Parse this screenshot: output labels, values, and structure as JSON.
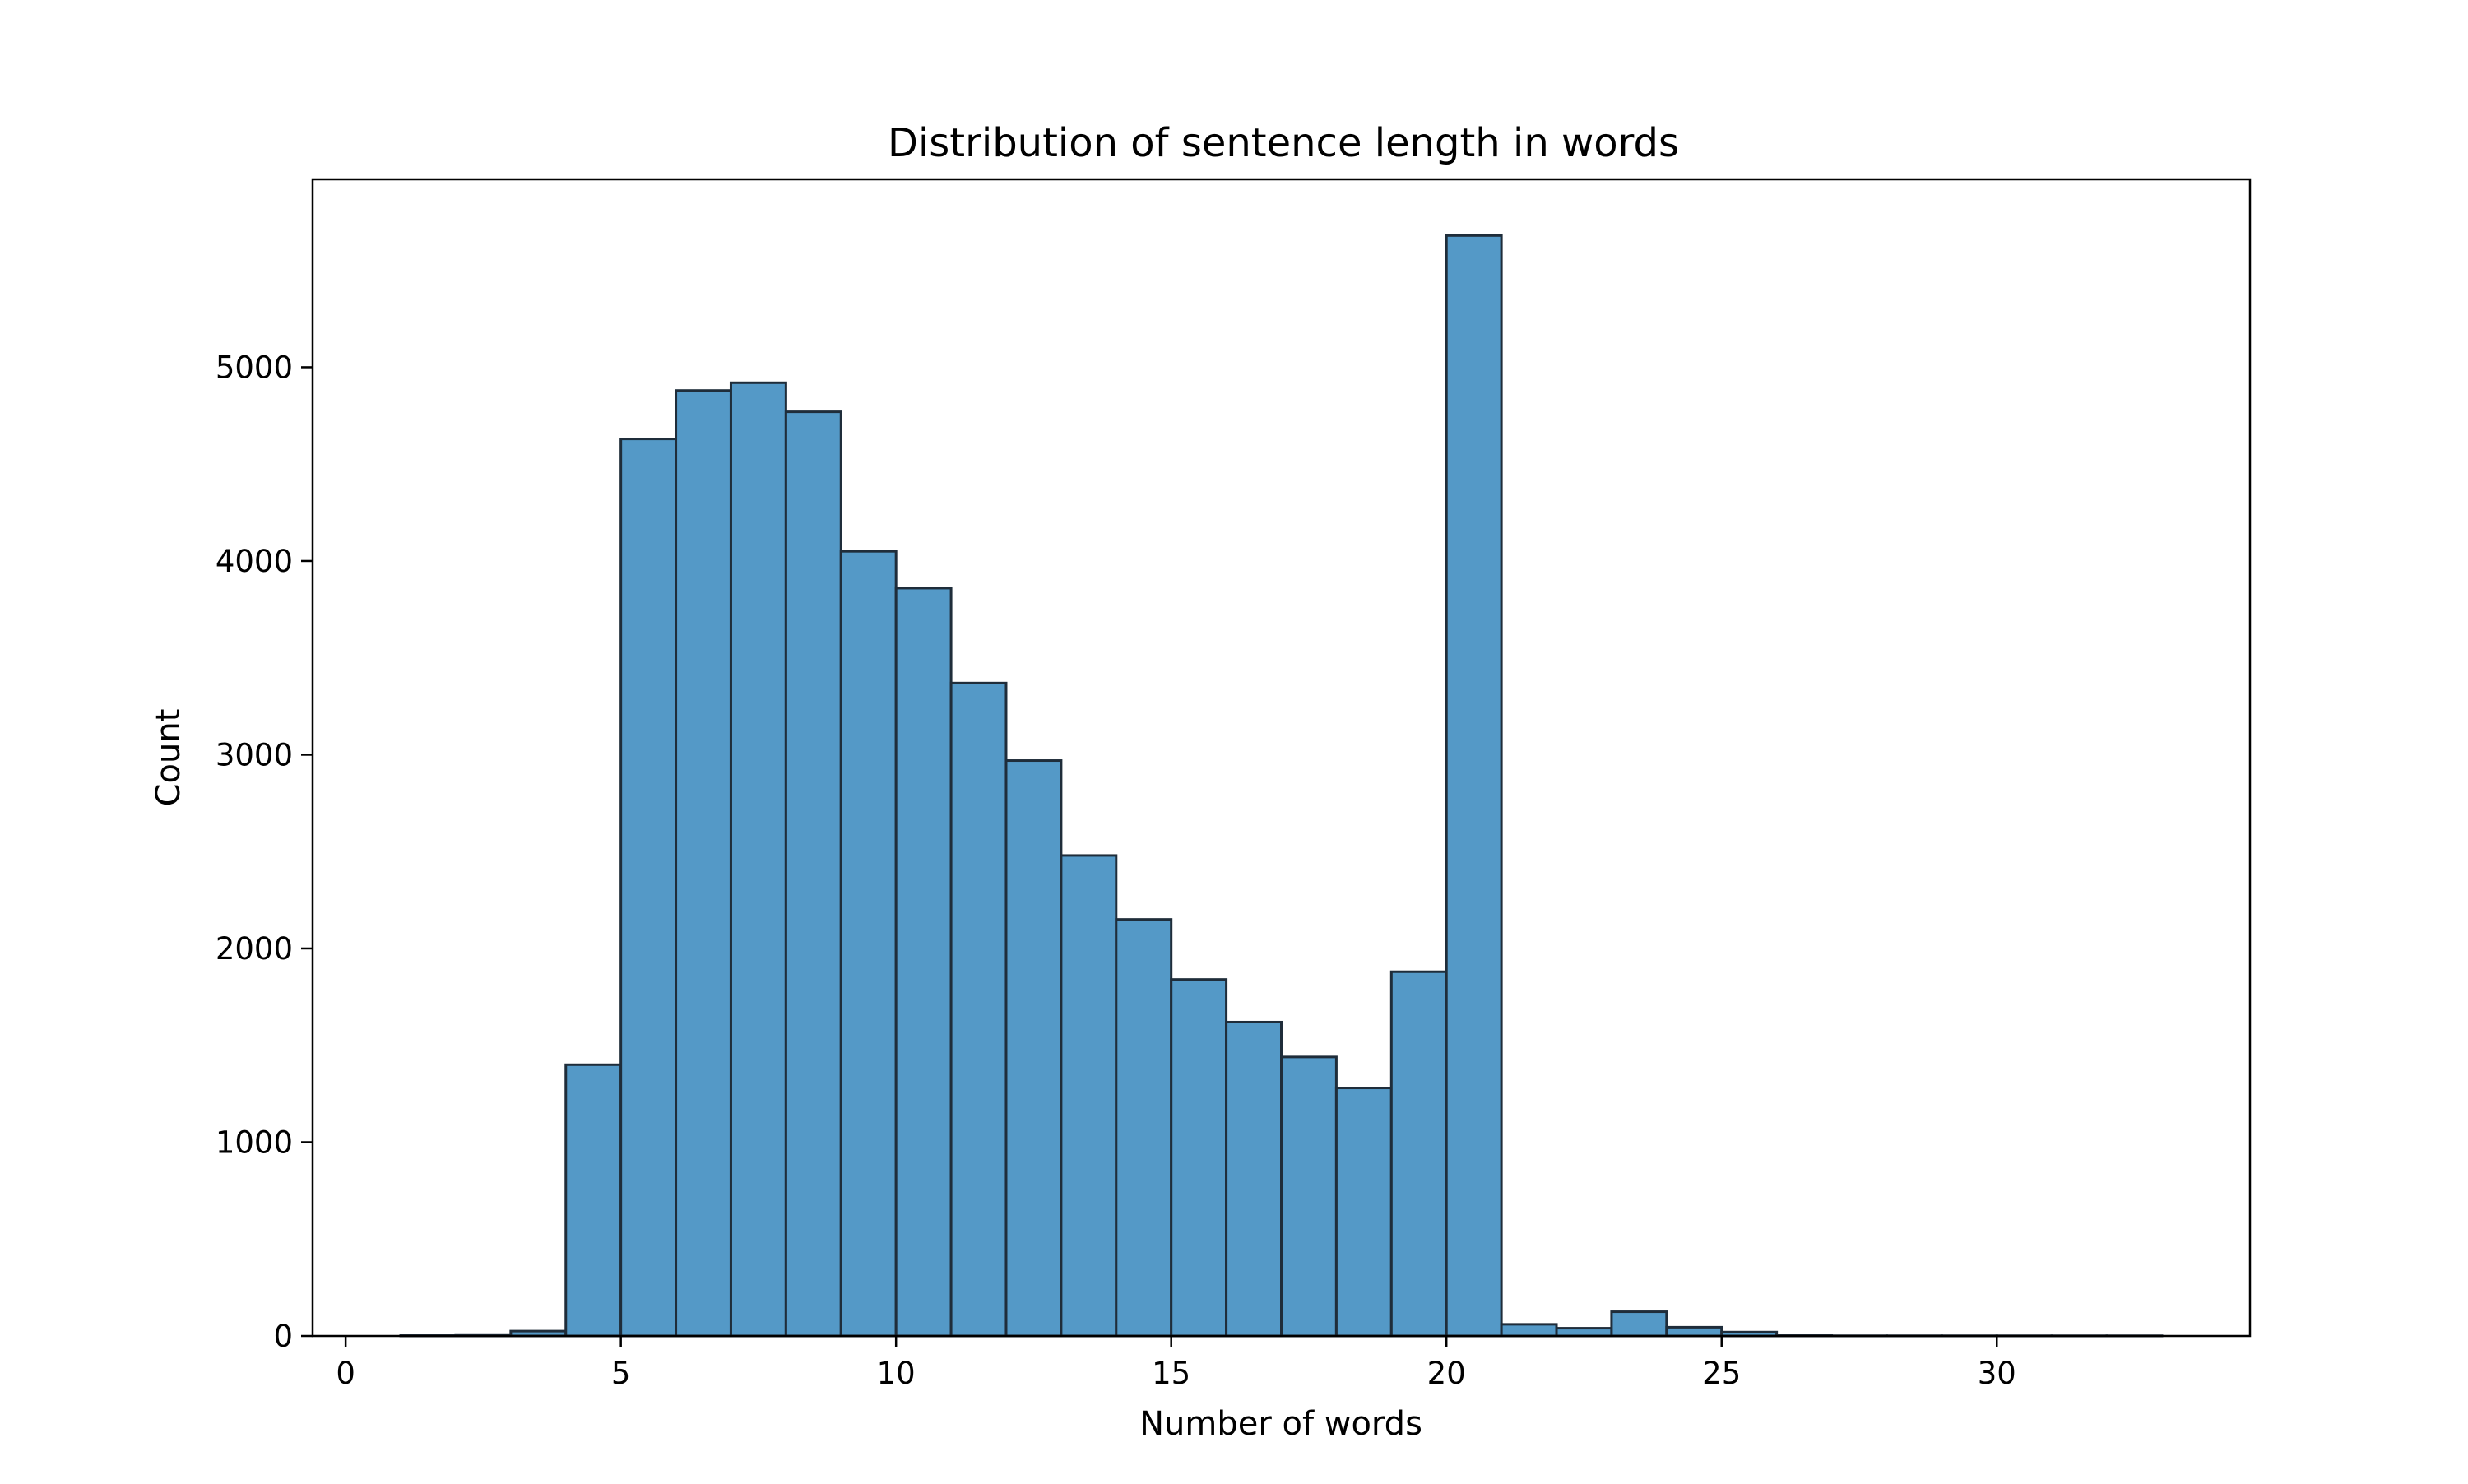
{
  "chart_data": {
    "type": "bar",
    "title": "Distribution of sentence length in words",
    "xlabel": "Number of words",
    "ylabel": "Count",
    "xlim": [
      -0.6,
      34.6
    ],
    "ylim": [
      0,
      5970
    ],
    "x_ticks": [
      0,
      5,
      10,
      15,
      20,
      25,
      30
    ],
    "y_ticks": [
      0,
      1000,
      2000,
      3000,
      4000,
      5000
    ],
    "grid": false,
    "legend": "none",
    "bar_color": "#5499c7",
    "edge_color": "#1f2d3a",
    "bins": [
      {
        "x0": 0,
        "x1": 1,
        "value": 0
      },
      {
        "x0": 1,
        "x1": 2,
        "value": 2
      },
      {
        "x0": 2,
        "x1": 3,
        "value": 3
      },
      {
        "x0": 3,
        "x1": 4,
        "value": 25
      },
      {
        "x0": 4,
        "x1": 5,
        "value": 1400
      },
      {
        "x0": 5,
        "x1": 6,
        "value": 4630
      },
      {
        "x0": 6,
        "x1": 7,
        "value": 4880
      },
      {
        "x0": 7,
        "x1": 8,
        "value": 4920
      },
      {
        "x0": 8,
        "x1": 9,
        "value": 4770
      },
      {
        "x0": 9,
        "x1": 10,
        "value": 4050
      },
      {
        "x0": 10,
        "x1": 11,
        "value": 3860
      },
      {
        "x0": 11,
        "x1": 12,
        "value": 3370
      },
      {
        "x0": 12,
        "x1": 13,
        "value": 2970
      },
      {
        "x0": 13,
        "x1": 14,
        "value": 2480
      },
      {
        "x0": 14,
        "x1": 15,
        "value": 2150
      },
      {
        "x0": 15,
        "x1": 16,
        "value": 1840
      },
      {
        "x0": 16,
        "x1": 17,
        "value": 1620
      },
      {
        "x0": 17,
        "x1": 18,
        "value": 1440
      },
      {
        "x0": 18,
        "x1": 19,
        "value": 1280
      },
      {
        "x0": 19,
        "x1": 20,
        "value": 1880
      },
      {
        "x0": 20,
        "x1": 21,
        "value": 5680
      },
      {
        "x0": 21,
        "x1": 22,
        "value": 60
      },
      {
        "x0": 22,
        "x1": 23,
        "value": 40
      },
      {
        "x0": 23,
        "x1": 24,
        "value": 125
      },
      {
        "x0": 24,
        "x1": 25,
        "value": 45
      },
      {
        "x0": 25,
        "x1": 26,
        "value": 20
      },
      {
        "x0": 26,
        "x1": 27,
        "value": 2
      },
      {
        "x0": 27,
        "x1": 28,
        "value": 1
      },
      {
        "x0": 28,
        "x1": 29,
        "value": 1
      },
      {
        "x0": 29,
        "x1": 30,
        "value": 1
      },
      {
        "x0": 30,
        "x1": 31,
        "value": 1
      },
      {
        "x0": 31,
        "x1": 32,
        "value": 1
      },
      {
        "x0": 32,
        "x1": 33,
        "value": 1
      }
    ]
  }
}
